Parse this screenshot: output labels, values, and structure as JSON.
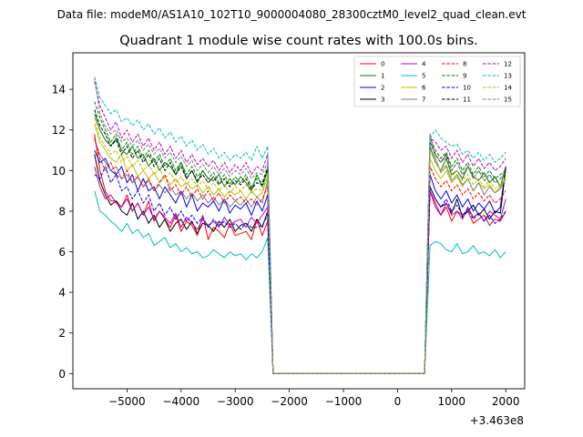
{
  "figure": {
    "suptitle": "Data file: modeM0/AS1A10_102T10_9000004080_28300cztM0_level2_quad_clean.evt"
  },
  "chart_data": {
    "type": "line",
    "title": "Quadrant 1 module wise count rates with 100.0s bins.",
    "xlabel": "",
    "ylabel": "",
    "x_offset_label": "+3.463e8",
    "xlim": [
      -6000,
      2350
    ],
    "ylim": [
      -0.75,
      15.8
    ],
    "xticks": [
      -5000,
      -4000,
      -3000,
      -2000,
      -1000,
      0,
      1000,
      2000
    ],
    "xtick_labels": [
      "−5000",
      "−4000",
      "−3000",
      "−2000",
      "−1000",
      "0",
      "1000",
      "2000"
    ],
    "yticks": [
      0,
      2,
      4,
      6,
      8,
      10,
      12,
      14
    ],
    "ytick_labels": [
      "0",
      "2",
      "4",
      "6",
      "8",
      "10",
      "12",
      "14"
    ],
    "grid": false,
    "legend_position": "top-right",
    "legend_columns": 4,
    "x_start": -5600,
    "x_step": 100,
    "x_end": 2000,
    "gap_start": -2300,
    "gap_end": 500,
    "series": [
      {
        "name": "0",
        "color": "#ff0000",
        "dash": "solid",
        "seg1": [
          11.8,
          10.0,
          9.0,
          8.5,
          8.5,
          8.2,
          8.8,
          8.0,
          8.4,
          7.8,
          8.5,
          7.5,
          8.0,
          7.6,
          7.2,
          7.8,
          7.0,
          7.5,
          7.3,
          6.8,
          7.8,
          6.6,
          7.2,
          7.0,
          6.7,
          7.4,
          6.8,
          6.9,
          7.0,
          6.6,
          7.6,
          6.8,
          7.5
        ],
        "seg2": [
          9.0,
          8.4,
          7.8,
          8.2,
          7.5,
          8.0,
          7.8,
          8.0,
          7.4,
          7.6,
          7.8,
          7.3,
          7.6,
          7.5,
          8.0
        ]
      },
      {
        "name": "1",
        "color": "#008000",
        "dash": "solid",
        "seg1": [
          12.8,
          12.0,
          11.5,
          11.2,
          11.6,
          11.0,
          10.8,
          11.2,
          10.6,
          10.8,
          10.2,
          10.6,
          10.0,
          10.4,
          10.2,
          9.8,
          10.4,
          9.6,
          10.0,
          9.4,
          10.0,
          9.6,
          9.5,
          9.8,
          9.2,
          9.6,
          9.3,
          9.7,
          9.4,
          9.0,
          9.8,
          9.2,
          10.0
        ],
        "seg2": [
          11.2,
          10.4,
          10.0,
          10.6,
          9.8,
          10.0,
          9.6,
          10.2,
          9.7,
          9.5,
          9.9,
          9.4,
          9.7,
          9.2,
          10.2
        ]
      },
      {
        "name": "2",
        "color": "#0000ff",
        "dash": "solid",
        "seg1": [
          11.0,
          10.4,
          10.6,
          10.0,
          9.8,
          10.2,
          9.4,
          9.8,
          9.0,
          9.6,
          9.0,
          9.2,
          8.6,
          9.2,
          8.8,
          8.4,
          9.0,
          8.2,
          8.8,
          8.0,
          8.4,
          8.2,
          8.5,
          8.0,
          8.6,
          7.9,
          8.3,
          8.1,
          8.4,
          7.8,
          8.5,
          8.0,
          8.8
        ],
        "seg2": [
          9.8,
          9.0,
          8.6,
          9.0,
          8.4,
          8.8,
          8.2,
          8.6,
          8.0,
          8.4,
          8.1,
          8.5,
          7.9,
          8.2,
          10.2
        ]
      },
      {
        "name": "3",
        "color": "#000000",
        "dash": "solid",
        "seg1": [
          10.8,
          9.5,
          8.8,
          8.3,
          8.5,
          8.0,
          7.8,
          8.4,
          7.6,
          8.0,
          7.4,
          7.8,
          7.2,
          7.6,
          7.0,
          7.4,
          7.6,
          7.1,
          7.5,
          6.9,
          7.4,
          7.3,
          7.0,
          7.5,
          7.2,
          7.6,
          7.0,
          7.3,
          7.4,
          7.0,
          7.6,
          7.2,
          8.0
        ],
        "seg2": [
          9.2,
          8.6,
          8.2,
          8.4,
          7.9,
          8.6,
          7.7,
          8.0,
          8.3,
          7.8,
          8.1,
          7.6,
          8.0,
          7.9,
          10.1
        ]
      },
      {
        "name": "4",
        "color": "#bf00bf",
        "dash": "solid",
        "seg1": [
          10.2,
          9.2,
          8.6,
          8.8,
          8.4,
          8.2,
          8.6,
          8.0,
          8.4,
          7.8,
          8.2,
          7.6,
          8.0,
          7.7,
          7.4,
          7.9,
          7.2,
          7.7,
          7.4,
          7.1,
          7.6,
          7.3,
          7.5,
          7.2,
          7.7,
          7.3,
          7.5,
          7.6,
          7.2,
          7.7,
          7.4,
          7.8,
          8.2
        ],
        "seg2": [
          9.0,
          8.2,
          7.8,
          8.4,
          7.8,
          8.0,
          7.6,
          8.2,
          7.7,
          7.9,
          7.5,
          8.0,
          7.8,
          7.6,
          8.6
        ]
      },
      {
        "name": "5",
        "color": "#00bfbf",
        "dash": "solid",
        "seg1": [
          9.0,
          8.0,
          7.8,
          7.5,
          7.3,
          7.0,
          7.4,
          6.9,
          7.1,
          6.7,
          6.9,
          6.3,
          6.5,
          6.7,
          6.2,
          6.4,
          6.0,
          6.2,
          5.9,
          6.0,
          5.7,
          5.8,
          6.1,
          5.9,
          5.7,
          6.0,
          5.8,
          5.9,
          5.6,
          5.9,
          5.7,
          6.0,
          6.7
        ],
        "seg2": [
          6.3,
          6.5,
          6.4,
          6.1,
          6.0,
          6.4,
          5.9,
          6.0,
          6.3,
          5.9,
          6.0,
          5.8,
          6.1,
          5.7,
          6.0
        ]
      },
      {
        "name": "6",
        "color": "#bfbf00",
        "dash": "solid",
        "seg1": [
          12.3,
          11.4,
          11.0,
          10.6,
          10.4,
          10.8,
          10.0,
          10.3,
          9.7,
          10.0,
          9.6,
          9.9,
          9.4,
          9.7,
          9.3,
          9.6,
          9.2,
          9.4,
          9.1,
          9.3,
          8.9,
          9.2,
          8.8,
          9.1,
          8.7,
          9.0,
          8.8,
          9.0,
          8.6,
          9.0,
          8.7,
          8.9,
          9.7
        ],
        "seg2": [
          10.6,
          10.0,
          9.6,
          10.0,
          9.4,
          9.7,
          9.2,
          9.6,
          9.0,
          9.4,
          9.1,
          9.3,
          8.9,
          9.2,
          9.7
        ]
      },
      {
        "name": "7",
        "color": "#808080",
        "dash": "solid",
        "seg1": [
          11.5,
          10.8,
          10.4,
          10.0,
          10.2,
          9.6,
          9.8,
          9.4,
          9.7,
          9.2,
          9.5,
          9.0,
          9.3,
          8.9,
          9.2,
          8.8,
          9.0,
          8.6,
          8.9,
          8.5,
          8.8,
          8.4,
          8.7,
          8.3,
          8.6,
          8.2,
          8.5,
          8.3,
          8.6,
          8.2,
          8.7,
          8.4,
          9.5
        ],
        "seg2": [
          11.8,
          10.6,
          9.9,
          10.2,
          9.5,
          9.8,
          9.3,
          9.6,
          9.0,
          9.4,
          8.8,
          9.2,
          8.9,
          9.1,
          9.6
        ]
      },
      {
        "name": "8",
        "color": "#ff0000",
        "dash": "dashed",
        "seg1": [
          11.6,
          10.6,
          10.0,
          10.4,
          9.8,
          9.6,
          10.0,
          9.4,
          9.7,
          9.2,
          9.6,
          9.0,
          9.4,
          9.8,
          9.0,
          9.3,
          8.8,
          9.2,
          8.7,
          9.1,
          8.6,
          9.0,
          8.5,
          8.9,
          8.4,
          8.8,
          8.5,
          8.7,
          8.4,
          8.6,
          8.3,
          8.6,
          9.2
        ],
        "seg2": [
          10.2,
          9.6,
          9.2,
          9.5,
          9.0,
          9.3,
          8.8,
          9.1,
          8.6,
          8.9,
          8.5,
          8.8,
          8.4,
          8.6,
          9.0
        ]
      },
      {
        "name": "9",
        "color": "#008000",
        "dash": "dashed",
        "seg1": [
          13.4,
          12.6,
          12.0,
          11.4,
          11.8,
          11.0,
          11.4,
          10.8,
          11.2,
          10.6,
          11.0,
          10.4,
          10.8,
          10.2,
          10.6,
          10.0,
          10.4,
          9.8,
          10.2,
          9.7,
          10.0,
          9.6,
          9.9,
          9.4,
          9.8,
          9.3,
          9.7,
          9.4,
          9.8,
          9.2,
          9.6,
          9.4,
          10.2
        ],
        "seg2": [
          11.6,
          11.0,
          10.6,
          10.9,
          10.2,
          10.6,
          10.0,
          10.4,
          9.8,
          10.2,
          9.7,
          10.0,
          9.6,
          9.8,
          10.0
        ]
      },
      {
        "name": "10",
        "color": "#0000ff",
        "dash": "dashed",
        "seg1": [
          9.8,
          9.6,
          10.2,
          9.4,
          9.8,
          9.0,
          9.2,
          8.6,
          9.0,
          8.4,
          8.8,
          8.0,
          8.4,
          7.8,
          8.2,
          7.6,
          8.0,
          7.5,
          7.8,
          7.4,
          7.7,
          7.2,
          7.6,
          7.3,
          7.5,
          7.2,
          7.4,
          7.1,
          7.4,
          7.2,
          7.2,
          7.3,
          7.8
        ],
        "seg2": [
          9.2,
          8.6,
          8.2,
          8.6,
          8.0,
          8.3,
          7.8,
          8.1,
          7.6,
          7.9,
          7.5,
          7.8,
          7.4,
          7.6,
          8.0
        ]
      },
      {
        "name": "11",
        "color": "#000000",
        "dash": "dashed",
        "seg1": [
          13.0,
          12.2,
          11.8,
          11.2,
          11.5,
          10.8,
          11.2,
          10.6,
          11.0,
          10.4,
          10.8,
          10.2,
          10.6,
          10.0,
          10.4,
          9.8,
          10.2,
          9.6,
          10.0,
          9.5,
          9.8,
          9.4,
          9.7,
          9.3,
          9.6,
          9.2,
          9.5,
          9.3,
          9.6,
          9.1,
          9.4,
          9.3,
          10.1
        ],
        "seg2": [
          11.4,
          10.8,
          10.4,
          10.8,
          10.0,
          10.4,
          9.8,
          10.2,
          9.6,
          10.0,
          9.5,
          9.8,
          9.4,
          9.6,
          9.9
        ]
      },
      {
        "name": "12",
        "color": "#bf00bf",
        "dash": "dashed",
        "seg1": [
          14.4,
          13.2,
          12.6,
          12.0,
          12.4,
          11.6,
          12.0,
          11.4,
          11.8,
          11.2,
          11.6,
          11.0,
          11.4,
          10.8,
          11.2,
          10.6,
          11.0,
          10.4,
          10.8,
          10.3,
          10.6,
          10.2,
          10.5,
          10.0,
          10.4,
          9.9,
          10.3,
          10.0,
          10.4,
          9.8,
          10.2,
          10.0,
          10.8
        ],
        "seg2": [
          11.6,
          11.4,
          11.0,
          11.2,
          10.6,
          11.0,
          10.4,
          10.8,
          10.2,
          10.6,
          10.1,
          10.4,
          10.0,
          10.2,
          10.6
        ]
      },
      {
        "name": "13",
        "color": "#00bfbf",
        "dash": "dashed",
        "seg1": [
          14.6,
          13.6,
          13.2,
          12.8,
          13.0,
          12.4,
          12.6,
          12.2,
          12.5,
          12.0,
          12.3,
          11.8,
          12.1,
          11.6,
          11.9,
          11.4,
          11.7,
          11.2,
          11.5,
          11.0,
          11.3,
          10.8,
          11.1,
          10.6,
          10.9,
          10.5,
          10.8,
          10.6,
          10.9,
          10.5,
          11.2,
          10.6,
          11.2
        ],
        "seg2": [
          11.6,
          12.0,
          11.6,
          11.4,
          11.2,
          11.3,
          10.8,
          11.0,
          10.6,
          10.9,
          10.5,
          10.8,
          10.4,
          10.6,
          10.9
        ]
      },
      {
        "name": "14",
        "color": "#bfbf00",
        "dash": "dashed",
        "seg1": [
          12.6,
          11.6,
          11.2,
          10.8,
          11.0,
          10.4,
          10.7,
          10.2,
          10.5,
          10.0,
          10.3,
          9.8,
          10.1,
          9.6,
          9.9,
          9.4,
          9.7,
          9.3,
          9.6,
          9.2,
          9.5,
          9.1,
          9.4,
          9.0,
          9.3,
          8.9,
          9.2,
          9.0,
          9.3,
          8.9,
          9.1,
          9.0,
          9.8
        ],
        "seg2": [
          11.0,
          10.4,
          10.0,
          10.3,
          9.7,
          10.0,
          9.5,
          9.8,
          9.3,
          9.6,
          9.2,
          9.5,
          9.1,
          9.3,
          9.6
        ]
      },
      {
        "name": "15",
        "color": "#808080",
        "dash": "dashed",
        "seg1": [
          14.6,
          12.8,
          12.2,
          11.8,
          12.0,
          11.4,
          11.6,
          11.2,
          11.5,
          11.0,
          11.3,
          10.8,
          11.1,
          10.6,
          10.9,
          10.4,
          10.7,
          10.2,
          10.5,
          10.0,
          10.3,
          9.9,
          10.2,
          9.8,
          10.1,
          9.7,
          10.0,
          9.8,
          10.1,
          9.6,
          9.9,
          9.8,
          10.4
        ],
        "seg2": [
          11.4,
          10.8,
          10.4,
          10.7,
          10.0,
          10.4,
          9.8,
          10.2,
          9.6,
          10.0,
          9.5,
          9.8,
          9.4,
          9.6,
          9.9
        ]
      }
    ]
  }
}
